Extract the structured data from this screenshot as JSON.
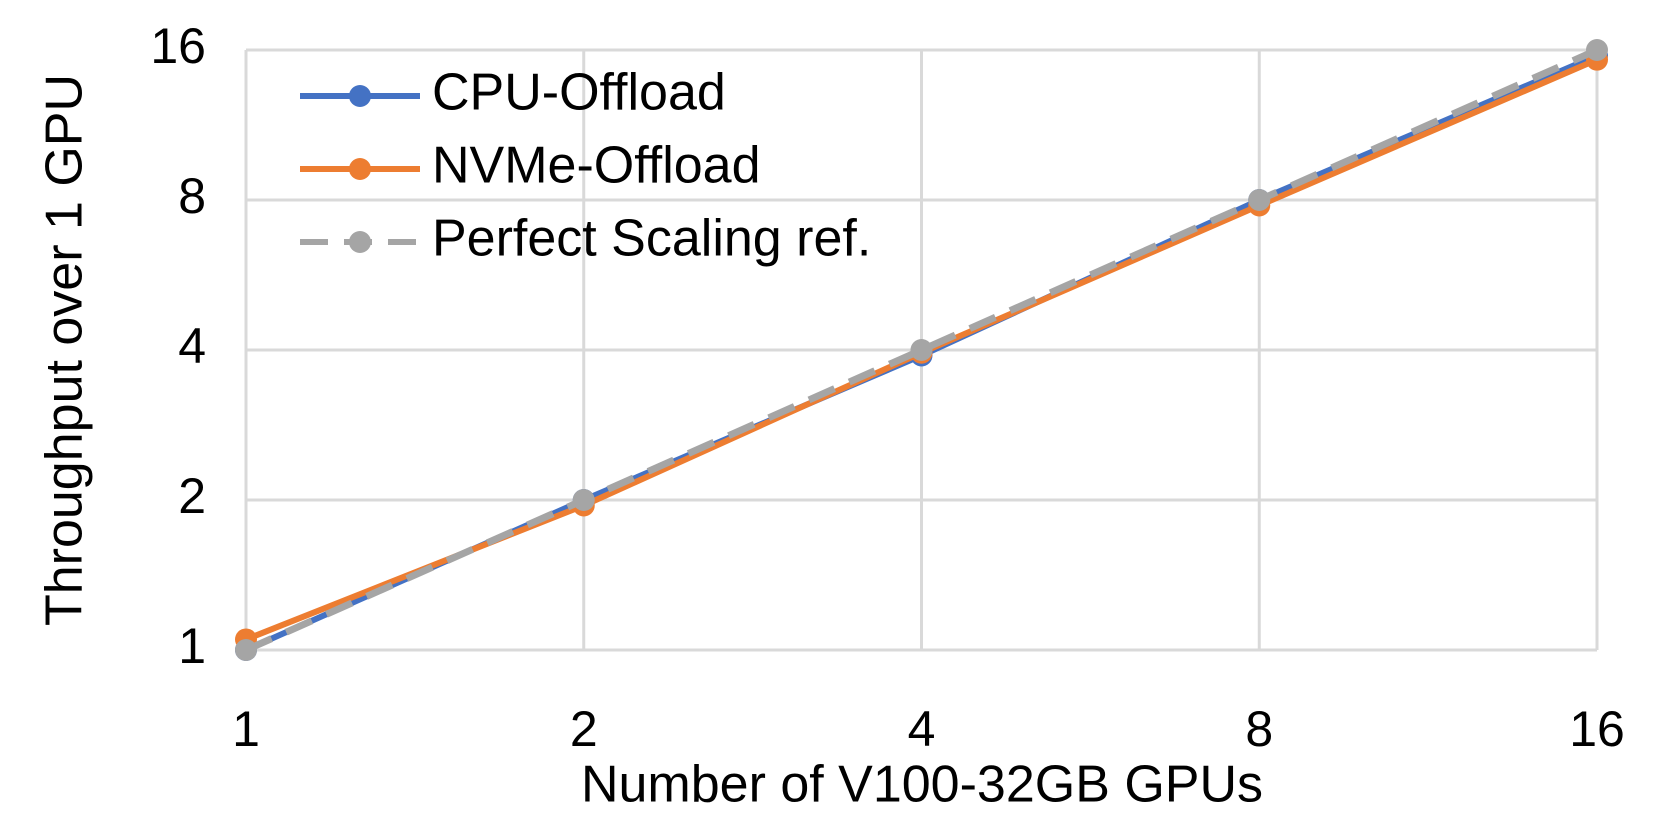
{
  "chart_data": {
    "type": "line",
    "x_label": "Number of V100-32GB GPUs",
    "y_label": "Throughput over 1 GPU",
    "x": [
      1,
      2,
      4,
      8,
      16
    ],
    "series": [
      {
        "name": "CPU-Offload",
        "color": "#4472c4",
        "values": [
          1,
          2,
          3.9,
          8,
          15.6
        ]
      },
      {
        "name": "NVMe-Offload",
        "color": "#ed7d31",
        "values": [
          1.05,
          1.95,
          3.95,
          7.8,
          15.3
        ]
      },
      {
        "name": "Perfect Scaling ref.",
        "color": "#a5a5a5",
        "dashed": true,
        "values": [
          1,
          2,
          4,
          8,
          16
        ]
      }
    ],
    "xlim": [
      1,
      16
    ],
    "ylim": [
      1,
      16
    ],
    "xticks": [
      1,
      2,
      4,
      8,
      16
    ],
    "yticks": [
      1,
      2,
      4,
      8,
      16
    ],
    "log_scale": {
      "x": 2,
      "y": 2
    },
    "grid": true,
    "legend": "upper left"
  }
}
